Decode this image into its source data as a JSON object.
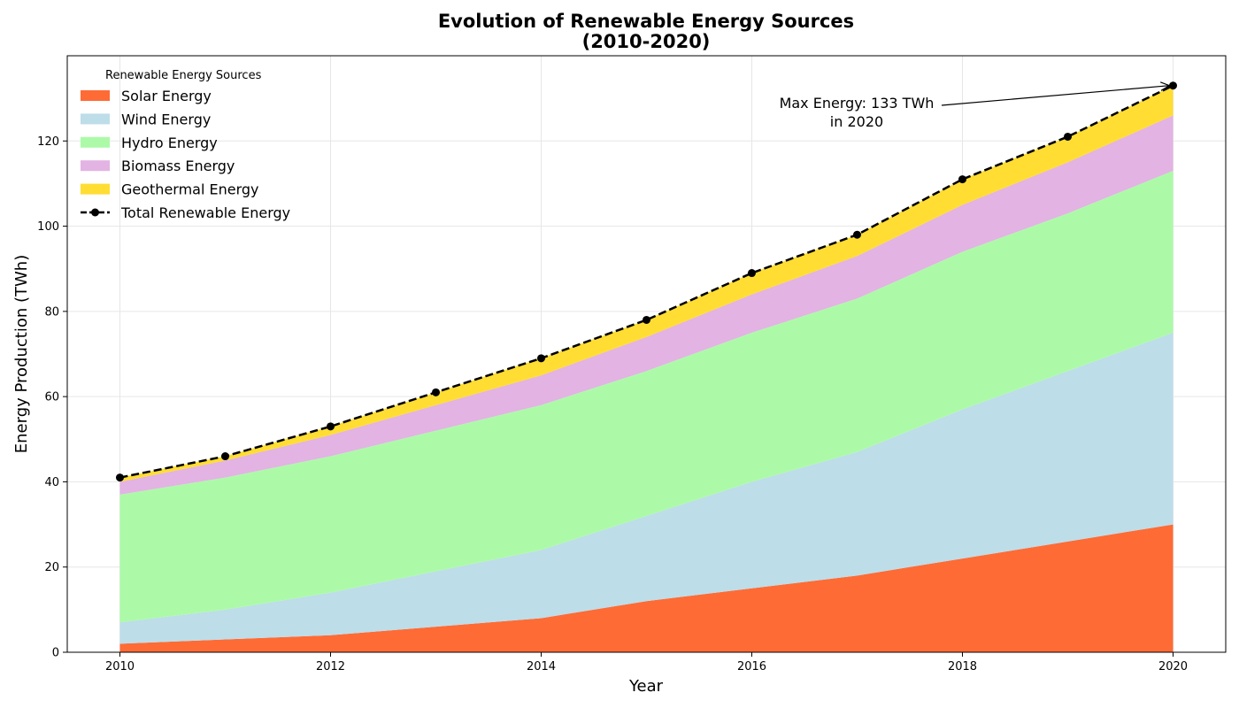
{
  "chart_data": {
    "type": "area",
    "stacked": true,
    "title_line1": "Evolution of Renewable Energy Sources",
    "title_line2": "(2010-2020)",
    "xlabel": "Year",
    "ylabel": "Energy Production (TWh)",
    "x": [
      2010,
      2011,
      2012,
      2013,
      2014,
      2015,
      2016,
      2017,
      2018,
      2019,
      2020
    ],
    "xlim": [
      2009.5,
      2020.5
    ],
    "ylim": [
      0,
      140
    ],
    "xticks": [
      2010,
      2012,
      2014,
      2016,
      2018,
      2020
    ],
    "yticks": [
      0,
      20,
      40,
      60,
      80,
      100,
      120
    ],
    "grid": true,
    "legend_title": "Renewable Energy Sources",
    "legend_position": "top-left",
    "series": [
      {
        "name": "Solar Energy",
        "color": "#ff6b35",
        "values": [
          2,
          3,
          4,
          6,
          8,
          12,
          15,
          18,
          22,
          26,
          30
        ]
      },
      {
        "name": "Wind Energy",
        "color": "#bddde9",
        "values": [
          5,
          7,
          10,
          13,
          16,
          20,
          25,
          29,
          35,
          40,
          45
        ]
      },
      {
        "name": "Hydro Energy",
        "color": "#acfaa8",
        "values": [
          30,
          31,
          32,
          33,
          34,
          34,
          35,
          36,
          37,
          37,
          38
        ]
      },
      {
        "name": "Biomass Energy",
        "color": "#e2b3e3",
        "values": [
          3,
          4,
          5,
          6,
          7,
          8,
          9,
          10,
          11,
          12,
          13
        ]
      },
      {
        "name": "Geothermal Energy",
        "color": "#ffdd33",
        "values": [
          1,
          1,
          2,
          3,
          4,
          4,
          5,
          5,
          6,
          6,
          7
        ]
      }
    ],
    "total": {
      "name": "Total Renewable Energy",
      "color": "#000000",
      "style": "dashed-with-markers",
      "values": [
        41,
        46,
        53,
        61,
        69,
        78,
        89,
        98,
        111,
        121,
        133
      ]
    },
    "annotation": {
      "line1": "Max Energy: 133 TWh",
      "line2": "in 2020",
      "x": 2020,
      "y": 133
    }
  }
}
